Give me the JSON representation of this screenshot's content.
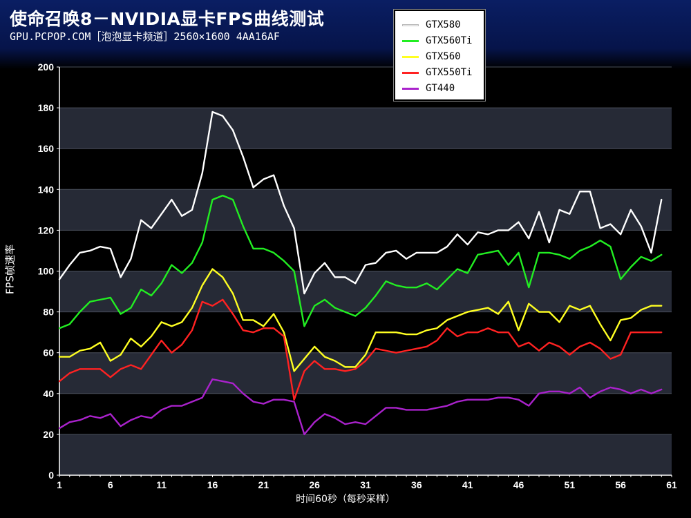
{
  "header": {
    "title": "使命召唤8－NVIDIA显卡FPS曲线测试",
    "subtitle": "GPU.PCPOP.COM［泡泡显卡频道］2560×1600 4AA16AF"
  },
  "chart_data": {
    "type": "line",
    "xlabel": "时间60秒（每秒采样）",
    "ylabel": "FPS帧速率",
    "xlim": [
      1,
      61
    ],
    "ylim": [
      0,
      200
    ],
    "x_ticks": [
      1,
      6,
      11,
      16,
      21,
      26,
      31,
      36,
      41,
      46,
      51,
      56,
      61
    ],
    "y_ticks": [
      0,
      20,
      40,
      60,
      80,
      100,
      120,
      140,
      160,
      180,
      200
    ],
    "legend_position": "top-right",
    "background": "alternating dark bands",
    "series": [
      {
        "name": "GTX580",
        "color": "#ffffff",
        "values": [
          96,
          103,
          109,
          110,
          112,
          111,
          97,
          106,
          125,
          121,
          128,
          135,
          127,
          130,
          148,
          178,
          176,
          169,
          156,
          141,
          145,
          147,
          132,
          121,
          89,
          99,
          104,
          97,
          97,
          94,
          103,
          104,
          109,
          110,
          106,
          109,
          109,
          109,
          112,
          118,
          113,
          119,
          118,
          120,
          120,
          124,
          116,
          129,
          114,
          130,
          128,
          139,
          139,
          121,
          123,
          118,
          130,
          122,
          109,
          135
        ]
      },
      {
        "name": "GTX560Ti",
        "color": "#22ee22",
        "values": [
          72,
          74,
          80,
          85,
          86,
          87,
          79,
          82,
          91,
          88,
          94,
          103,
          99,
          104,
          114,
          135,
          137,
          135,
          122,
          111,
          111,
          109,
          105,
          100,
          73,
          83,
          86,
          82,
          80,
          78,
          82,
          88,
          95,
          93,
          92,
          92,
          94,
          91,
          96,
          101,
          99,
          108,
          109,
          110,
          103,
          109,
          92,
          109,
          109,
          108,
          106,
          110,
          112,
          115,
          112,
          96,
          102,
          107,
          105,
          108
        ]
      },
      {
        "name": "GTX560",
        "color": "#ffff22",
        "values": [
          58,
          58,
          61,
          62,
          65,
          56,
          59,
          67,
          63,
          68,
          75,
          73,
          75,
          82,
          93,
          101,
          97,
          89,
          76,
          76,
          73,
          79,
          70,
          51,
          57,
          63,
          58,
          56,
          53,
          53,
          59,
          70,
          70,
          70,
          69,
          69,
          71,
          72,
          76,
          78,
          80,
          81,
          82,
          79,
          85,
          71,
          84,
          80,
          80,
          75,
          83,
          81,
          83,
          74,
          66,
          76,
          77,
          81,
          83,
          83
        ]
      },
      {
        "name": "GTX550Ti",
        "color": "#ff2222",
        "values": [
          46,
          50,
          52,
          52,
          52,
          48,
          52,
          54,
          52,
          59,
          66,
          60,
          64,
          71,
          85,
          83,
          86,
          79,
          71,
          70,
          72,
          72,
          68,
          37,
          51,
          56,
          52,
          52,
          51,
          52,
          56,
          62,
          61,
          60,
          61,
          62,
          63,
          66,
          72,
          68,
          70,
          70,
          72,
          70,
          70,
          63,
          65,
          61,
          65,
          63,
          59,
          63,
          65,
          62,
          57,
          59,
          70,
          70,
          70,
          70
        ]
      },
      {
        "name": "GT440",
        "color": "#aa22cc",
        "values": [
          23,
          26,
          27,
          29,
          28,
          30,
          24,
          27,
          29,
          28,
          32,
          34,
          34,
          36,
          38,
          47,
          46,
          45,
          40,
          36,
          35,
          37,
          37,
          36,
          20,
          26,
          30,
          28,
          25,
          26,
          25,
          29,
          33,
          33,
          32,
          32,
          32,
          33,
          34,
          36,
          37,
          37,
          37,
          38,
          38,
          37,
          34,
          40,
          41,
          41,
          40,
          43,
          38,
          41,
          43,
          42,
          40,
          42,
          40,
          42
        ]
      }
    ]
  }
}
